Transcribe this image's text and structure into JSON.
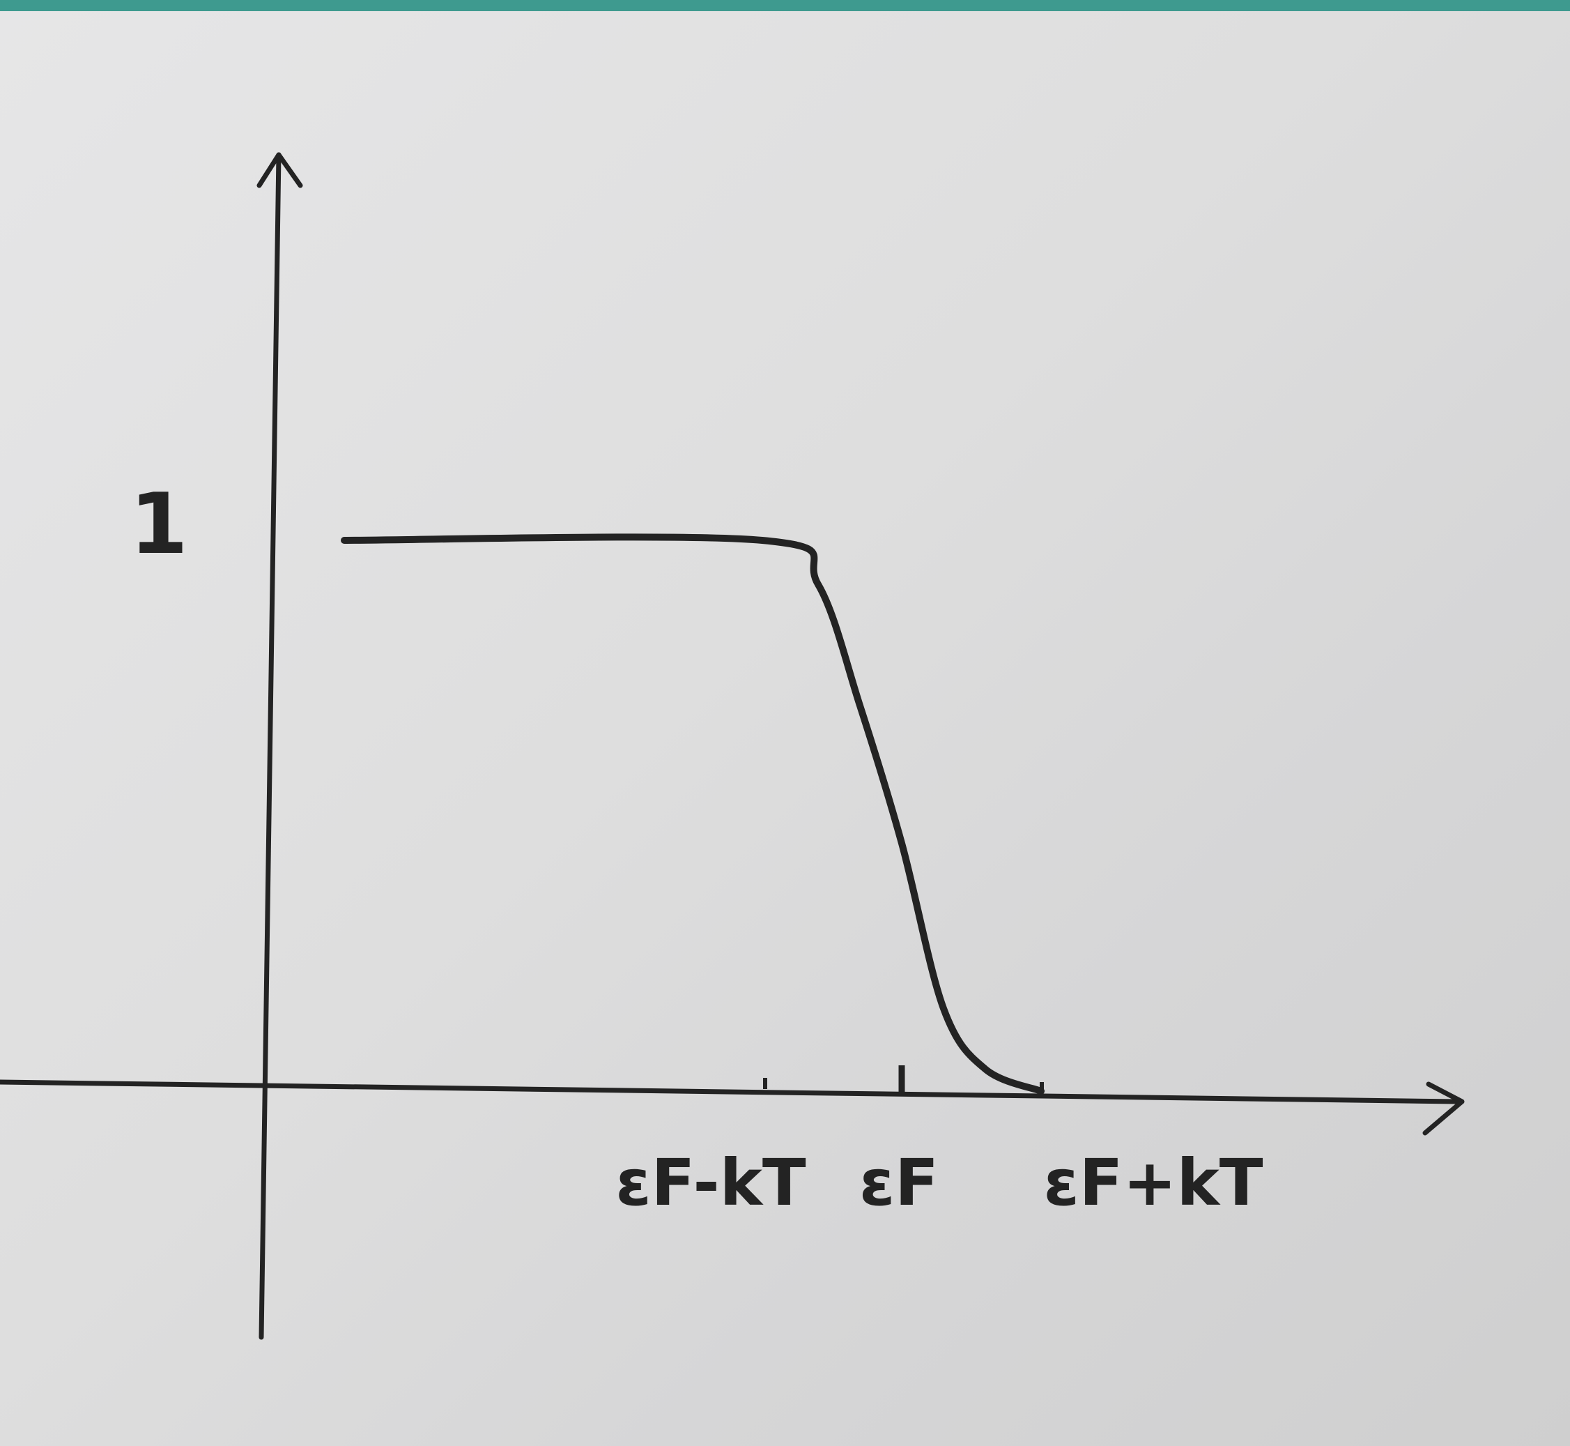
{
  "chart_data": {
    "type": "line",
    "title": "",
    "xlabel": "",
    "ylabel": "",
    "y_tick_labels": [
      "1"
    ],
    "x_tick_labels": [
      "εF-kT",
      "εF",
      "εF+kT"
    ],
    "x": [
      -1.0,
      0.0,
      1.0
    ],
    "series": [
      {
        "name": "",
        "x": [
          -4.0,
          -1.0,
          -0.6,
          -0.3,
          0.0,
          0.3,
          0.6,
          1.0
        ],
        "y": [
          1.0,
          1.0,
          0.92,
          0.7,
          0.45,
          0.15,
          0.04,
          0.0
        ]
      }
    ],
    "xlim": [
      -4.0,
      4.2
    ],
    "ylim": [
      0,
      1.7
    ],
    "grid": false,
    "colors": {
      "ink": "#232323",
      "paper": "#e2e2e3",
      "strip": "#3e9a8f"
    }
  }
}
